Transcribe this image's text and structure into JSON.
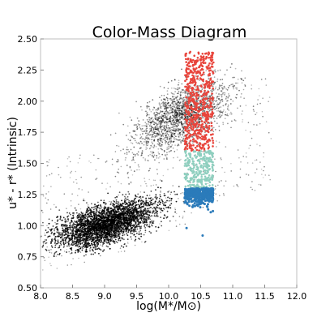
{
  "chart_data": {
    "type": "scatter",
    "title": "Color-Mass Diagram",
    "xlabel": "log(M*/M⊙)",
    "ylabel": "u* - r* (Intrinsic)",
    "xlim": [
      8.0,
      12.0
    ],
    "ylim": [
      0.5,
      2.5
    ],
    "x_ticks": [
      "8.0",
      "8.5",
      "9.0",
      "9.5",
      "10.0",
      "10.5",
      "11.0",
      "11.5",
      "12.0"
    ],
    "y_ticks": [
      "0.50",
      "0.75",
      "1.00",
      "1.25",
      "1.50",
      "1.75",
      "2.00",
      "2.25",
      "2.50"
    ],
    "grid": false,
    "legend": "none",
    "series": [
      {
        "role": "background galaxies",
        "color": "#000000",
        "distribution": {
          "blue_cloud_trend": [
            [
              8.0,
              0.9
            ],
            [
              9.0,
              1.0
            ],
            [
              10.0,
              1.18
            ],
            [
              11.0,
              1.55
            ]
          ],
          "red_sequence_trend": [
            [
              9.0,
              1.55
            ],
            [
              10.0,
              1.85
            ],
            [
              10.7,
              2.0
            ],
            [
              11.3,
              2.15
            ]
          ],
          "x_range": [
            8.0,
            11.8
          ],
          "y_range": [
            0.5,
            2.45
          ]
        }
      },
      {
        "role": "selected red sample",
        "color": "#e8453c",
        "x_range": [
          10.25,
          10.7
        ],
        "y_range": [
          1.6,
          2.4
        ]
      },
      {
        "role": "selected green sample",
        "color": "#8fcfbf",
        "x_range": [
          10.25,
          10.7
        ],
        "y_range": [
          1.3,
          1.6
        ]
      },
      {
        "role": "selected blue sample",
        "color": "#2b7bba",
        "x_range": [
          10.2,
          10.7
        ],
        "y_range": [
          0.92,
          1.3
        ]
      }
    ]
  }
}
